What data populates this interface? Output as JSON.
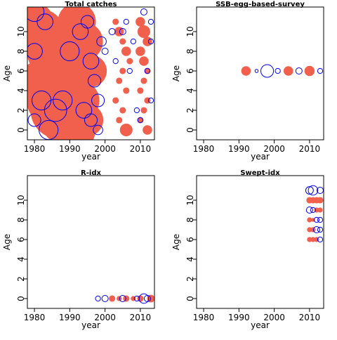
{
  "chart_data": [
    {
      "type": "scatter",
      "title": "Total catches",
      "xlabel": "year",
      "ylabel": "Age",
      "xlim": [
        1978,
        2014
      ],
      "ylim": [
        -1,
        12.5
      ],
      "x_ticks": [
        1980,
        1990,
        2000,
        2010
      ],
      "y_ticks": [
        0,
        2,
        4,
        6,
        8,
        10
      ],
      "residual_colors": {
        "positive": "#f0604d",
        "negative": "#0000ee"
      },
      "series": [
        {
          "name": "positive",
          "points": [
            [
              1980,
              11,
              6
            ],
            [
              1982,
              10,
              7
            ],
            [
              1984,
              9,
              8
            ],
            [
              1986,
              8,
              9
            ],
            [
              1988,
              7,
              8
            ],
            [
              1990,
              6,
              7
            ],
            [
              1981,
              5,
              6
            ],
            [
              1983,
              4,
              7
            ],
            [
              1985,
              3,
              8
            ],
            [
              1987,
              2,
              9
            ],
            [
              1989,
              1,
              8
            ],
            [
              1991,
              0,
              7
            ],
            [
              1992,
              11,
              6
            ],
            [
              1994,
              9,
              6
            ],
            [
              1996,
              6,
              5
            ],
            [
              1993,
              3,
              6
            ],
            [
              1995,
              1,
              5
            ],
            [
              2003,
              11,
              1
            ],
            [
              2004,
              10,
              1.5
            ],
            [
              2005,
              9,
              1
            ],
            [
              2006,
              8,
              1.5
            ],
            [
              2007,
              7,
              1
            ],
            [
              2005,
              6,
              1
            ],
            [
              2004,
              5,
              1
            ],
            [
              2006,
              4,
              1
            ],
            [
              2003,
              3,
              1
            ],
            [
              2005,
              2,
              1
            ],
            [
              2004,
              1,
              1
            ],
            [
              2006,
              0,
              2
            ],
            [
              2010,
              11,
              1.5
            ],
            [
              2011,
              10,
              2
            ],
            [
              2012,
              9,
              1.5
            ],
            [
              2010,
              8,
              1.5
            ],
            [
              2011,
              7,
              1.5
            ],
            [
              2012,
              6,
              1
            ],
            [
              2011,
              5,
              1
            ],
            [
              2010,
              4,
              1
            ],
            [
              2012,
              3,
              1
            ],
            [
              2011,
              2,
              1
            ],
            [
              2010,
              1,
              1
            ],
            [
              2012,
              0,
              1.5
            ]
          ]
        },
        {
          "name": "negative",
          "points": [
            [
              1980,
              12,
              3
            ],
            [
              1983,
              11,
              2.5
            ],
            [
              1980,
              8,
              2.5
            ],
            [
              1982,
              3,
              3
            ],
            [
              1980,
              1,
              2
            ],
            [
              1984,
              0,
              3
            ],
            [
              1986,
              2,
              3.5
            ],
            [
              1988,
              3,
              3
            ],
            [
              1990,
              8,
              3
            ],
            [
              1993,
              10,
              2.5
            ],
            [
              1995,
              11,
              2
            ],
            [
              1996,
              7,
              2.5
            ],
            [
              1997,
              5,
              2
            ],
            [
              1994,
              2,
              2.5
            ],
            [
              1996,
              1,
              2
            ],
            [
              1998,
              3,
              2
            ],
            [
              1999,
              9,
              1.5
            ],
            [
              1998,
              0,
              1.5
            ],
            [
              2000,
              8,
              1
            ],
            [
              2002,
              10,
              1
            ],
            [
              2003,
              7,
              0.8
            ],
            [
              2005,
              10,
              1
            ],
            [
              2006,
              11,
              0.8
            ],
            [
              2007,
              6,
              0.8
            ],
            [
              2008,
              9,
              0.8
            ],
            [
              2009,
              2,
              0.8
            ],
            [
              2011,
              12,
              1
            ],
            [
              2013,
              11,
              0.8
            ],
            [
              2013,
              9,
              0.8
            ],
            [
              2012,
              6,
              0.8
            ],
            [
              2013,
              3,
              0.8
            ],
            [
              2010,
              1,
              0.8
            ]
          ]
        }
      ]
    },
    {
      "type": "scatter",
      "title": "SSB-egg-based-survey",
      "xlabel": "year",
      "ylabel": "Age",
      "xlim": [
        1978,
        2014
      ],
      "ylim": [
        -1,
        12.5
      ],
      "x_ticks": [
        1980,
        1990,
        2000,
        2010
      ],
      "y_ticks": [
        0,
        2,
        4,
        6,
        8,
        10
      ],
      "residual_colors": {
        "positive": "#f0604d",
        "negative": "#0000ee"
      },
      "series": [
        {
          "name": "positive",
          "points": [
            [
              1992,
              6,
              1.5
            ],
            [
              2004,
              6,
              1.5
            ],
            [
              2010,
              6,
              1.6
            ]
          ]
        },
        {
          "name": "negative",
          "points": [
            [
              1995,
              6,
              0.5
            ],
            [
              1998,
              6,
              2
            ],
            [
              2001,
              6,
              0.8
            ],
            [
              2007,
              6,
              1
            ],
            [
              2013,
              6,
              0.8
            ]
          ]
        }
      ]
    },
    {
      "type": "scatter",
      "title": "R-idx",
      "xlabel": "year",
      "ylabel": "Age",
      "xlim": [
        1978,
        2014
      ],
      "ylim": [
        -1,
        12.5
      ],
      "x_ticks": [
        1980,
        1990,
        2000,
        2010
      ],
      "y_ticks": [
        0,
        2,
        4,
        6,
        8,
        10
      ],
      "residual_colors": {
        "positive": "#f0604d",
        "negative": "#0000ee"
      },
      "series": [
        {
          "name": "positive",
          "points": [
            [
              2002,
              0,
              1
            ],
            [
              2004,
              0,
              0.8
            ],
            [
              2006,
              0,
              1
            ],
            [
              2008,
              0,
              0.8
            ],
            [
              2010,
              0,
              1
            ],
            [
              2013,
              0,
              1.2
            ]
          ]
        },
        {
          "name": "negative",
          "points": [
            [
              1998,
              0,
              0.8
            ],
            [
              2000,
              0,
              1
            ],
            [
              2005,
              0,
              1
            ],
            [
              2009,
              0,
              0.8
            ],
            [
              2011,
              0,
              1.5
            ],
            [
              2012,
              0,
              1
            ]
          ]
        }
      ]
    },
    {
      "type": "scatter",
      "title": "Swept-idx",
      "xlabel": "year",
      "ylabel": "Age",
      "xlim": [
        1978,
        2014
      ],
      "ylim": [
        -1,
        12.5
      ],
      "x_ticks": [
        1980,
        1990,
        2000,
        2010
      ],
      "y_ticks": [
        0,
        2,
        4,
        6,
        8,
        10
      ],
      "residual_colors": {
        "positive": "#f0604d",
        "negative": "#0000ee"
      },
      "series": [
        {
          "name": "positive",
          "points": [
            [
              2010,
              10,
              1
            ],
            [
              2011,
              10,
              1
            ],
            [
              2012,
              10,
              1
            ],
            [
              2013,
              10,
              1
            ],
            [
              2010,
              8,
              0.8
            ],
            [
              2012,
              9,
              0.8
            ],
            [
              2010,
              7,
              0.8
            ],
            [
              2011,
              7,
              0.8
            ],
            [
              2010,
              6,
              0.8
            ],
            [
              2011,
              6,
              0.8
            ],
            [
              2012,
              6,
              0.8
            ],
            [
              2013,
              9,
              0.8
            ],
            [
              2011,
              8,
              0.6
            ]
          ]
        },
        {
          "name": "negative",
          "points": [
            [
              2010,
              11,
              1.2
            ],
            [
              2011,
              11,
              1.5
            ],
            [
              2013,
              11,
              1
            ],
            [
              2010,
              9,
              1
            ],
            [
              2012,
              8,
              0.8
            ],
            [
              2013,
              8,
              0.8
            ],
            [
              2012,
              7,
              1
            ],
            [
              2013,
              7,
              0.8
            ],
            [
              2013,
              6,
              0.8
            ],
            [
              2011,
              9,
              0.8
            ]
          ]
        }
      ]
    }
  ]
}
